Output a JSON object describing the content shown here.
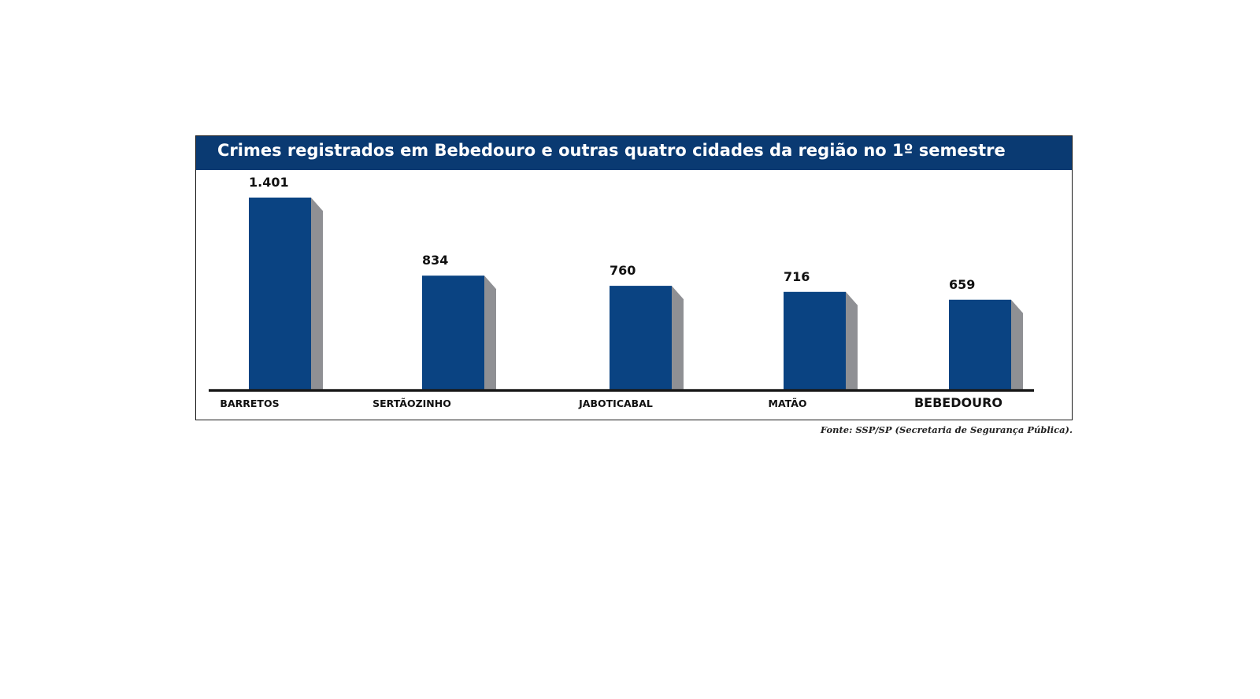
{
  "chart_data": {
    "type": "bar",
    "title": "Crimes registrados em Bebedouro e outras quatro cidades da região no 1º semestre",
    "categories": [
      "BARRETOS",
      "SERTÃOZINHO",
      "JABOTICABAL",
      "MATÃO",
      "BEBEDOURO"
    ],
    "values": [
      1401,
      834,
      760,
      716,
      659
    ],
    "value_labels": [
      "1.401",
      "834",
      "760",
      "716",
      "659"
    ],
    "highlighted_category": "BEBEDOURO",
    "xlabel": "",
    "ylabel": "",
    "ylim": [
      0,
      1401
    ],
    "grid": false,
    "legend": "none",
    "source": "Fonte: SSP/SP (Secretaria de Segurança Pública).",
    "colors": {
      "title_bar": "#0a3a72",
      "bar_front": "#0a4382",
      "bar_side": "#8f9094",
      "bar_top": "#b8b9bc",
      "baseline": "#1a1a1a"
    }
  }
}
